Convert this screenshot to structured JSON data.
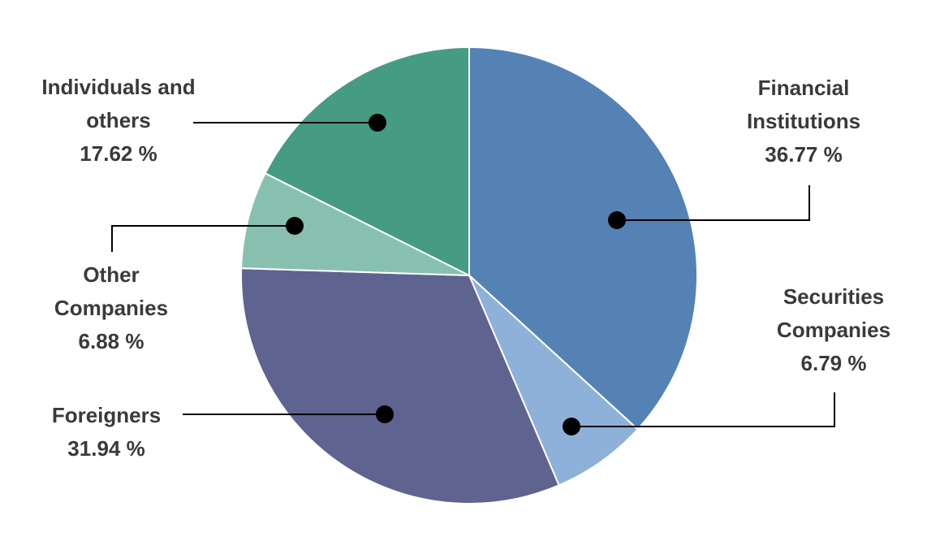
{
  "chart_data": {
    "type": "pie",
    "categories": [
      "Financial Institutions",
      "Securities Companies",
      "Foreigners",
      "Other Companies",
      "Individuals and others"
    ],
    "values": [
      36.77,
      6.79,
      31.94,
      6.88,
      17.62
    ],
    "value_labels": [
      "36.77 %",
      "6.79 %",
      "31.94 %",
      "6.88 %",
      "17.62 %"
    ],
    "colors": [
      "#5482b4",
      "#8eb1d9",
      "#5f6390",
      "#88c0b0",
      "#459c83"
    ]
  }
}
